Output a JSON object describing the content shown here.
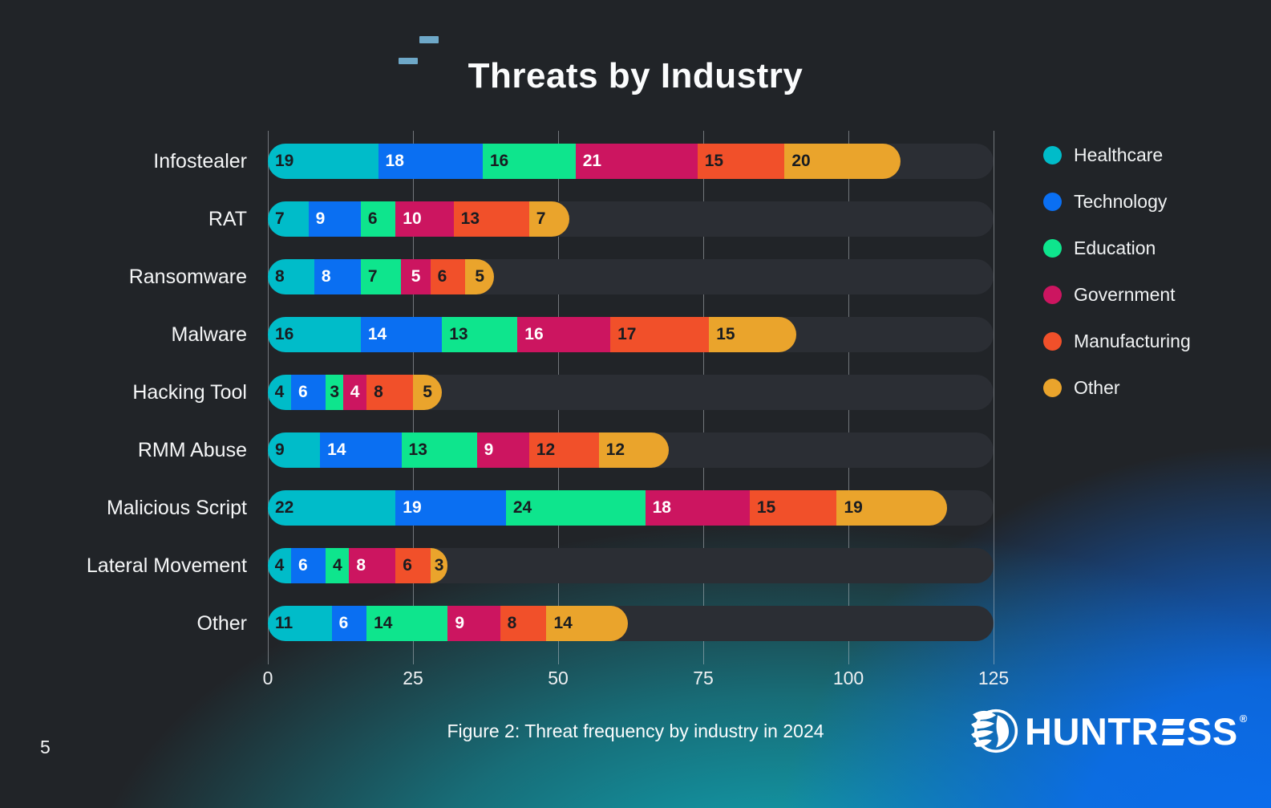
{
  "slide": {
    "title": "Threats by Industry",
    "caption": "Figure 2: Threat frequency by industry in 2024",
    "page_number": "5",
    "accent_dash_color": "#6ea8c8",
    "brand": {
      "name": "HUNTRESS",
      "wordmark_left": "HUNTR",
      "wordmark_right": "SS",
      "registered_mark": "®"
    }
  },
  "chart_data": {
    "type": "bar",
    "orientation": "horizontal",
    "stacked": true,
    "title": "Threats by Industry",
    "xlabel": "",
    "ylabel": "",
    "xlim": [
      0,
      125
    ],
    "x_ticks": [
      0,
      25,
      50,
      75,
      100,
      125
    ],
    "grid": true,
    "legend_position": "right",
    "track_color": "#2b2e34",
    "categories": [
      "Infostealer",
      "RAT",
      "Ransomware",
      "Malware",
      "Hacking Tool",
      "RMM Abuse",
      "Malicious Script",
      "Lateral Movement",
      "Other"
    ],
    "series": [
      {
        "name": "Healthcare",
        "color": "#00bcc9",
        "label_color": "#191c21",
        "values": [
          19,
          7,
          8,
          16,
          4,
          9,
          22,
          4,
          11
        ]
      },
      {
        "name": "Technology",
        "color": "#0a6ff2",
        "label_color": "#ffffff",
        "values": [
          18,
          9,
          8,
          14,
          6,
          14,
          19,
          6,
          6
        ]
      },
      {
        "name": "Education",
        "color": "#0ee58d",
        "label_color": "#191c21",
        "values": [
          16,
          6,
          7,
          13,
          3,
          13,
          24,
          4,
          14
        ]
      },
      {
        "name": "Government",
        "color": "#cc1560",
        "label_color": "#ffffff",
        "values": [
          21,
          10,
          5,
          16,
          4,
          9,
          18,
          8,
          9
        ]
      },
      {
        "name": "Manufacturing",
        "color": "#f1502a",
        "label_color": "#191c21",
        "values": [
          15,
          13,
          6,
          17,
          8,
          12,
          15,
          6,
          8
        ]
      },
      {
        "name": "Other",
        "color": "#eaa42c",
        "label_color": "#191c21",
        "values": [
          20,
          7,
          5,
          15,
          5,
          12,
          19,
          3,
          14
        ]
      }
    ],
    "totals": [
      109,
      52,
      39,
      91,
      30,
      69,
      117,
      31,
      62
    ]
  }
}
